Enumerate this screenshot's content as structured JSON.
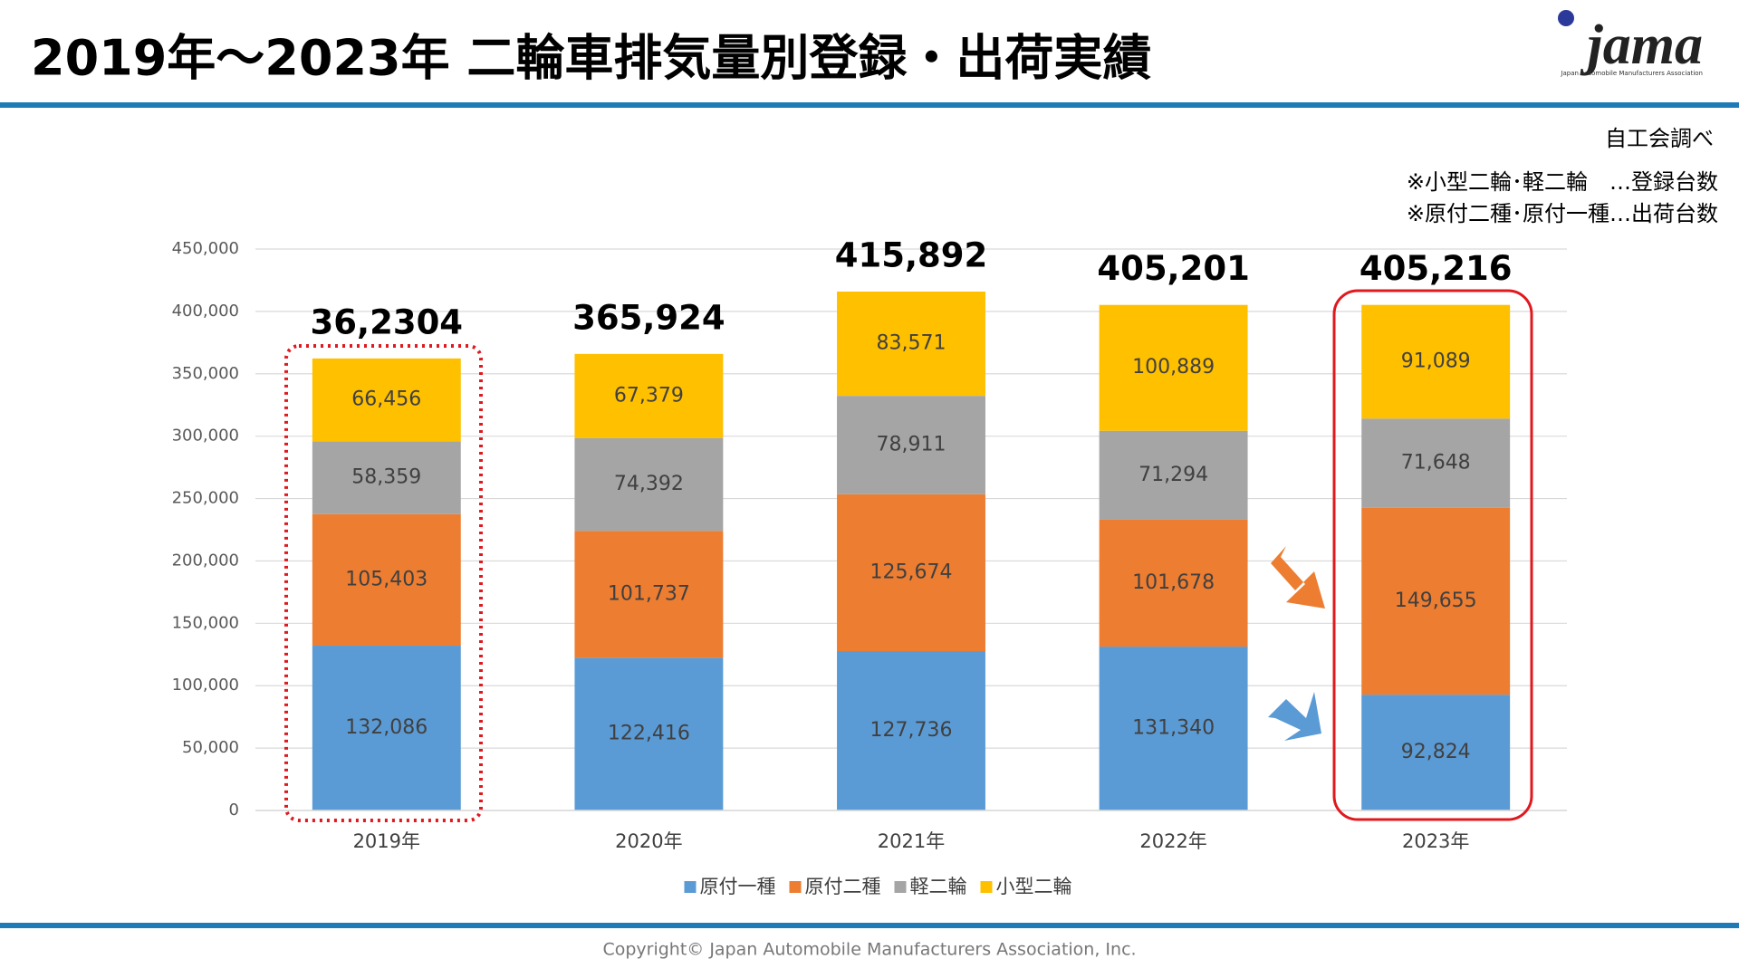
{
  "header": {
    "title": "2019年～2023年 二輪車排気量別登録・出荷実績",
    "logo": "jama",
    "logo_subtitle": "Japan Automobile Manufacturers Association"
  },
  "notes": {
    "source": "自工会調べ",
    "lines": [
      "※小型二輪･軽二輪　…登録台数",
      "※原付二種･原付一種…出荷台数"
    ]
  },
  "footer": {
    "copyright": "Copyright© Japan Automobile Manufacturers Association, Inc."
  },
  "chart_data": {
    "type": "stacked_bar",
    "categories": [
      "2019年",
      "2020年",
      "2021年",
      "2022年",
      "2023年"
    ],
    "series": [
      {
        "name": "原付一種",
        "color": "#5b9bd5",
        "values": [
          132086,
          122416,
          127736,
          131340,
          92824
        ],
        "value_labels": [
          "132,086",
          "122,416",
          "127,736",
          "131,340",
          "92,824"
        ]
      },
      {
        "name": "原付二種",
        "color": "#ed7d31",
        "values": [
          105403,
          101737,
          125674,
          101678,
          149655
        ],
        "value_labels": [
          "105,403",
          "101,737",
          "125,674",
          "101,678",
          "149,655"
        ]
      },
      {
        "name": "軽二輪",
        "color": "#a5a5a5",
        "values": [
          58359,
          74392,
          78911,
          71294,
          71648
        ],
        "value_labels": [
          "58,359",
          "74,392",
          "78,911",
          "71,294",
          "71,648"
        ]
      },
      {
        "name": "小型二輪",
        "color": "#ffc000",
        "values": [
          66456,
          67379,
          83571,
          100889,
          91089
        ],
        "value_labels": [
          "66,456",
          "67,379",
          "83,571",
          "100,889",
          "91,089"
        ]
      }
    ],
    "total_labels": [
      "36,2304",
      "365,924",
      "415,892",
      "405,201",
      "405,216"
    ],
    "ylim": [
      0,
      450000
    ],
    "yticks": [
      0,
      {
        "value": 50000,
        "label": "50,000"
      },
      {
        "value": 100000,
        "label": "100,000"
      },
      {
        "value": 150000,
        "label": "150,000"
      },
      {
        "value": 200000,
        "label": "200,000"
      },
      {
        "value": 250000,
        "label": "250,000"
      },
      {
        "value": 300000,
        "label": "300,000"
      },
      {
        "value": 350000,
        "label": "350,000"
      },
      {
        "value": 400000,
        "label": "400,000"
      },
      {
        "value": 450000,
        "label": "450,000"
      }
    ],
    "grid": true,
    "legend": "bottom"
  }
}
